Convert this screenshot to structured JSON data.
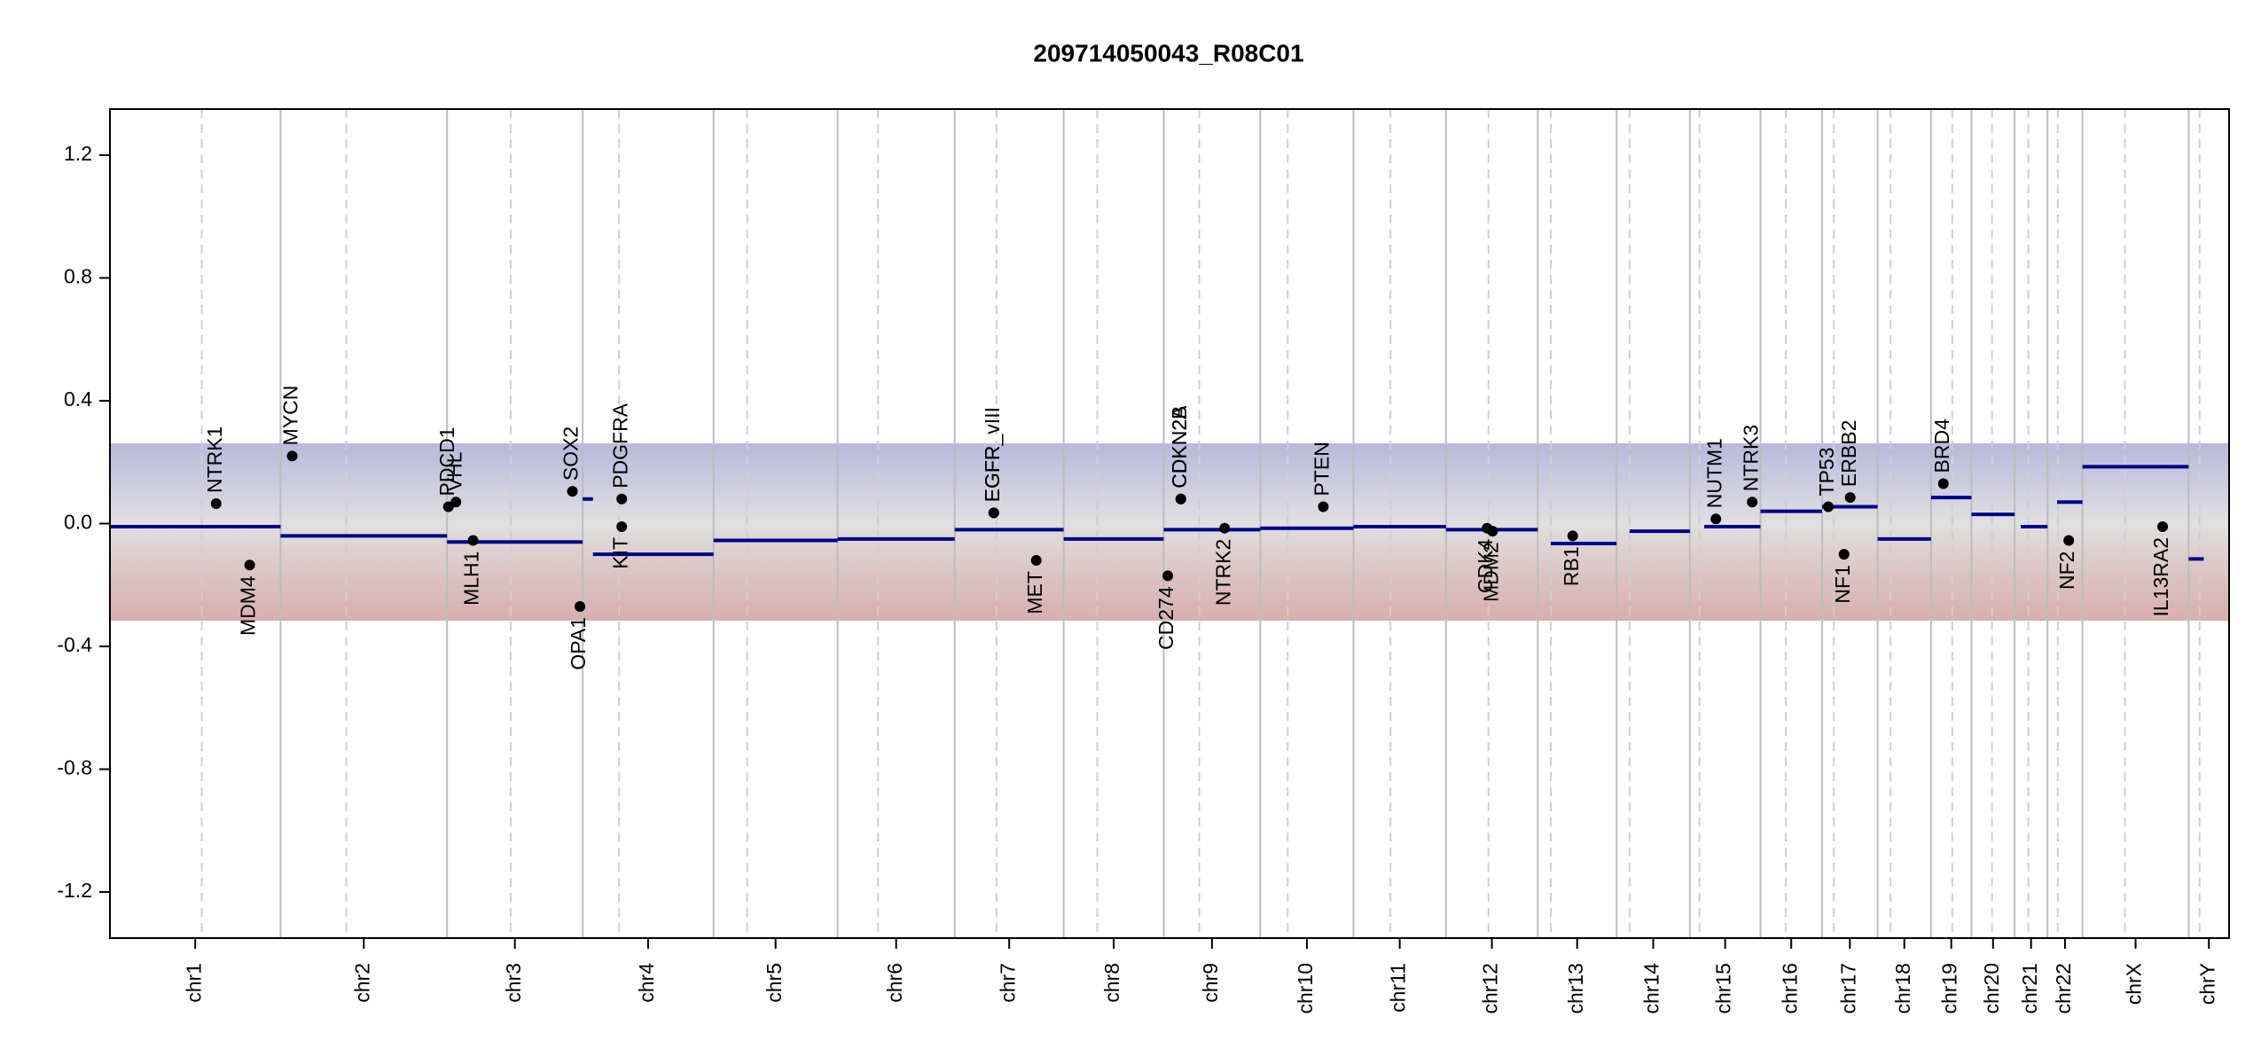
{
  "chart_data": {
    "type": "cnv",
    "title": "209714050043_R08C01",
    "ylim": [
      -1.35,
      1.35
    ],
    "yticks": [
      -1.2,
      -0.8,
      -0.4,
      {
        "value": 0,
        "label": "0.0"
      },
      0.4,
      0.8,
      1.2
    ],
    "xlim": [
      0,
      3093
    ],
    "segment_color": "#00008b",
    "gene_color": "#000000",
    "chromosomes": [
      {
        "name": "chr1",
        "start": 0,
        "end": 249,
        "centromere": 134
      },
      {
        "name": "chr2",
        "start": 249,
        "end": 492,
        "centromere": 345
      },
      {
        "name": "chr3",
        "start": 492,
        "end": 690,
        "centromere": 585
      },
      {
        "name": "chr4",
        "start": 690,
        "end": 881,
        "centromere": 743
      },
      {
        "name": "chr5",
        "start": 881,
        "end": 1062,
        "centromere": 930
      },
      {
        "name": "chr6",
        "start": 1062,
        "end": 1233,
        "centromere": 1121
      },
      {
        "name": "chr7",
        "start": 1233,
        "end": 1392,
        "centromere": 1294
      },
      {
        "name": "chr8",
        "start": 1392,
        "end": 1538,
        "centromere": 1441
      },
      {
        "name": "chr9",
        "start": 1538,
        "end": 1679,
        "centromere": 1590
      },
      {
        "name": "chr10",
        "start": 1679,
        "end": 1815,
        "centromere": 1719
      },
      {
        "name": "chr11",
        "start": 1815,
        "end": 1950,
        "centromere": 1869
      },
      {
        "name": "chr12",
        "start": 1950,
        "end": 2084,
        "centromere": 2012
      },
      {
        "name": "chr13",
        "start": 2084,
        "end": 2199,
        "centromere": 2103
      },
      {
        "name": "chr14",
        "start": 2199,
        "end": 2306,
        "centromere": 2218
      },
      {
        "name": "chr15",
        "start": 2306,
        "end": 2409,
        "centromere": 2320
      },
      {
        "name": "chr16",
        "start": 2409,
        "end": 2499,
        "centromere": 2446
      },
      {
        "name": "chr17",
        "start": 2499,
        "end": 2580,
        "centromere": 2516
      },
      {
        "name": "chr18",
        "start": 2580,
        "end": 2658,
        "centromere": 2599
      },
      {
        "name": "chr19",
        "start": 2658,
        "end": 2717,
        "centromere": 2689
      },
      {
        "name": "chr20",
        "start": 2717,
        "end": 2780,
        "centromere": 2747
      },
      {
        "name": "chr21",
        "start": 2780,
        "end": 2828,
        "centromere": 2800
      },
      {
        "name": "chr22",
        "start": 2828,
        "end": 2879,
        "centromere": 2843
      },
      {
        "name": "chrX",
        "start": 2879,
        "end": 3034,
        "centromere": 2941
      },
      {
        "name": "chrY",
        "start": 3034,
        "end": 3093,
        "centromere": 3050
      }
    ],
    "segments": [
      {
        "start": 0,
        "end": 249,
        "value": -0.01
      },
      {
        "start": 249,
        "end": 492,
        "value": -0.04
      },
      {
        "start": 492,
        "end": 690,
        "value": -0.06
      },
      {
        "start": 690,
        "end": 705,
        "value": 0.08
      },
      {
        "start": 705,
        "end": 881,
        "value": -0.1
      },
      {
        "start": 881,
        "end": 1062,
        "value": -0.055
      },
      {
        "start": 1062,
        "end": 1233,
        "value": -0.05
      },
      {
        "start": 1233,
        "end": 1392,
        "value": -0.02
      },
      {
        "start": 1392,
        "end": 1538,
        "value": -0.05
      },
      {
        "start": 1538,
        "end": 1679,
        "value": -0.02
      },
      {
        "start": 1679,
        "end": 1815,
        "value": -0.015
      },
      {
        "start": 1815,
        "end": 1950,
        "value": -0.01
      },
      {
        "start": 1950,
        "end": 2084,
        "value": -0.02
      },
      {
        "start": 2103,
        "end": 2199,
        "value": -0.065
      },
      {
        "start": 2218,
        "end": 2306,
        "value": -0.025
      },
      {
        "start": 2327,
        "end": 2409,
        "value": -0.01
      },
      {
        "start": 2409,
        "end": 2499,
        "value": 0.04
      },
      {
        "start": 2499,
        "end": 2580,
        "value": 0.055
      },
      {
        "start": 2580,
        "end": 2658,
        "value": -0.05
      },
      {
        "start": 2658,
        "end": 2717,
        "value": 0.085
      },
      {
        "start": 2717,
        "end": 2780,
        "value": 0.03
      },
      {
        "start": 2789,
        "end": 2828,
        "value": -0.01
      },
      {
        "start": 2842,
        "end": 2879,
        "value": 0.07
      },
      {
        "start": 2879,
        "end": 3034,
        "value": 0.185
      },
      {
        "start": 3034,
        "end": 3056,
        "value": -0.115
      }
    ],
    "genes": [
      {
        "name": "NTRK1",
        "x": 155,
        "value": 0.065
      },
      {
        "name": "MDM4",
        "x": 204,
        "value": -0.135
      },
      {
        "name": "MYCN",
        "x": 266,
        "value": 0.22
      },
      {
        "name": "PDCD1",
        "x": 494,
        "value": 0.055
      },
      {
        "name": "VHL",
        "x": 505,
        "value": 0.07
      },
      {
        "name": "MLH1",
        "x": 530,
        "value": -0.055
      },
      {
        "name": "SOX2",
        "x": 675,
        "value": 0.105
      },
      {
        "name": "OPA1",
        "x": 686,
        "value": -0.27
      },
      {
        "name": "PDGFRA",
        "x": 747,
        "value": 0.08
      },
      {
        "name": "KIT",
        "x": 747,
        "value": -0.01
      },
      {
        "name": "EGFR_vIII",
        "x": 1290,
        "value": 0.035
      },
      {
        "name": "EGFR",
        "x": 1290,
        "value": 0.035
      },
      {
        "name": "MET",
        "x": 1352,
        "value": -0.12
      },
      {
        "name": "CD274",
        "x": 1544,
        "value": -0.17
      },
      {
        "name": "CDKN2A",
        "x": 1563,
        "value": 0.08
      },
      {
        "name": "CDKN2B",
        "x": 1563,
        "value": 0.08
      },
      {
        "name": "NTRK2",
        "x": 1627,
        "value": -0.015
      },
      {
        "name": "PTEN",
        "x": 1771,
        "value": 0.055
      },
      {
        "name": "CDK4",
        "x": 2010,
        "value": -0.015
      },
      {
        "name": "MDM2",
        "x": 2018,
        "value": -0.025
      },
      {
        "name": "RB1",
        "x": 2135,
        "value": -0.04
      },
      {
        "name": "NUTM1",
        "x": 2344,
        "value": 0.015
      },
      {
        "name": "NTRK3",
        "x": 2397,
        "value": 0.07
      },
      {
        "name": "TP53",
        "x": 2508,
        "value": 0.055
      },
      {
        "name": "NF1",
        "x": 2531,
        "value": -0.1
      },
      {
        "name": "ERBB2",
        "x": 2540,
        "value": 0.085
      },
      {
        "name": "BRD4",
        "x": 2676,
        "value": 0.13
      },
      {
        "name": "NF2",
        "x": 2859,
        "value": -0.055
      },
      {
        "name": "IL13RA2",
        "x": 2996,
        "value": -0.01
      }
    ]
  }
}
